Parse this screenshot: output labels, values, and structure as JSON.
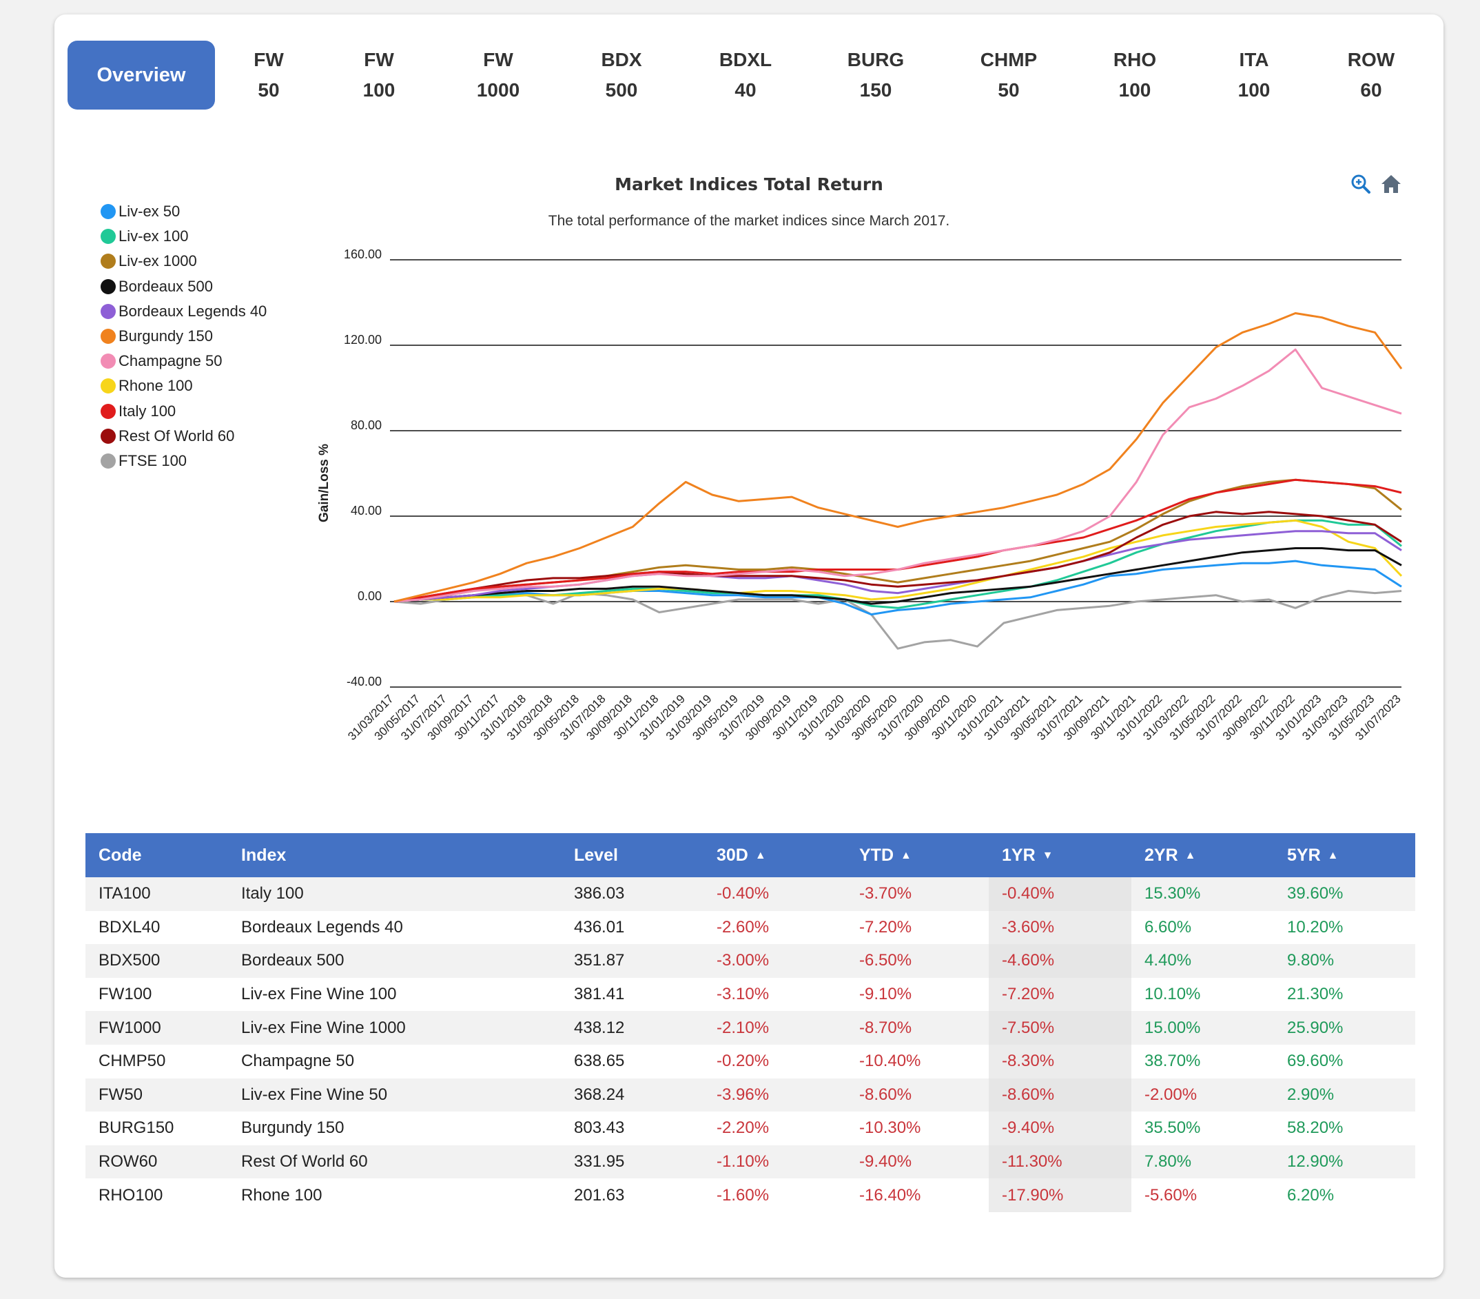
{
  "tabs": [
    {
      "line1": "Overview",
      "line2": ""
    },
    {
      "line1": "FW",
      "line2": "50"
    },
    {
      "line1": "FW",
      "line2": "100"
    },
    {
      "line1": "FW",
      "line2": "1000"
    },
    {
      "line1": "BDX",
      "line2": "500"
    },
    {
      "line1": "BDXL",
      "line2": "40"
    },
    {
      "line1": "BURG",
      "line2": "150"
    },
    {
      "line1": "CHMP",
      "line2": "50"
    },
    {
      "line1": "RHO",
      "line2": "100"
    },
    {
      "line1": "ITA",
      "line2": "100"
    },
    {
      "line1": "ROW",
      "line2": "60"
    }
  ],
  "toolbar": {
    "zoom_icon": "zoom-in-icon",
    "home_icon": "home-icon"
  },
  "chart_data": {
    "type": "line",
    "title": "Market Indices Total Return",
    "subtitle": "The total performance of the market indices since March 2017.",
    "ylabel": "Gain/Loss %",
    "xlabel": "",
    "ylim": [
      -40,
      160
    ],
    "yticks": [
      "160.00",
      "120.00",
      "80.00",
      "40.00",
      "0.00",
      "-40.00"
    ],
    "grid": true,
    "legend_position": "left",
    "x": [
      "31/03/2017",
      "30/05/2017",
      "31/07/2017",
      "30/09/2017",
      "30/11/2017",
      "31/01/2018",
      "31/03/2018",
      "30/05/2018",
      "31/07/2018",
      "30/09/2018",
      "30/11/2018",
      "31/01/2019",
      "31/03/2019",
      "30/05/2019",
      "31/07/2019",
      "30/09/2019",
      "30/11/2019",
      "31/01/2020",
      "31/03/2020",
      "30/05/2020",
      "31/07/2020",
      "30/09/2020",
      "30/11/2020",
      "31/01/2021",
      "31/03/2021",
      "30/05/2021",
      "31/07/2021",
      "30/09/2021",
      "30/11/2021",
      "31/01/2022",
      "31/03/2022",
      "31/05/2022",
      "31/07/2022",
      "30/09/2022",
      "30/11/2022",
      "31/01/2023",
      "31/03/2023",
      "31/05/2023",
      "31/07/2023"
    ],
    "series": [
      {
        "name": "Liv-ex 50",
        "color": "#2196f3",
        "values": [
          0,
          1,
          2,
          3,
          3,
          4,
          3,
          3,
          4,
          5,
          5,
          4,
          3,
          3,
          2,
          2,
          2,
          -1,
          -6,
          -4,
          -3,
          -1,
          0,
          1,
          2,
          5,
          8,
          12,
          13,
          15,
          16,
          17,
          18,
          18,
          19,
          17,
          16,
          15,
          7
        ]
      },
      {
        "name": "Liv-ex 100",
        "color": "#20c997",
        "values": [
          0,
          1,
          1,
          2,
          3,
          3,
          3,
          4,
          5,
          6,
          6,
          5,
          4,
          4,
          3,
          3,
          3,
          1,
          -2,
          -3,
          -1,
          1,
          3,
          5,
          7,
          10,
          14,
          18,
          23,
          27,
          30,
          33,
          35,
          37,
          38,
          38,
          36,
          36,
          26
        ]
      },
      {
        "name": "Liv-ex 1000",
        "color": "#b07d1c",
        "values": [
          0,
          2,
          3,
          5,
          7,
          8,
          9,
          10,
          12,
          14,
          16,
          17,
          16,
          15,
          15,
          16,
          15,
          13,
          11,
          9,
          11,
          13,
          15,
          17,
          19,
          22,
          25,
          28,
          34,
          41,
          47,
          51,
          54,
          56,
          57,
          56,
          55,
          53,
          43
        ]
      },
      {
        "name": "Bordeaux 500",
        "color": "#111111",
        "values": [
          0,
          1,
          2,
          3,
          4,
          5,
          5,
          6,
          6,
          7,
          7,
          6,
          5,
          4,
          3,
          3,
          2,
          1,
          -1,
          0,
          2,
          4,
          5,
          6,
          7,
          9,
          11,
          13,
          15,
          17,
          19,
          21,
          23,
          24,
          25,
          25,
          24,
          24,
          17
        ]
      },
      {
        "name": "Bordeaux Legends 40",
        "color": "#8e5fd6",
        "values": [
          0,
          1,
          2,
          3,
          5,
          6,
          7,
          8,
          10,
          12,
          13,
          13,
          12,
          11,
          11,
          12,
          10,
          8,
          5,
          4,
          6,
          8,
          10,
          12,
          14,
          16,
          19,
          22,
          25,
          27,
          29,
          30,
          31,
          32,
          33,
          33,
          32,
          32,
          24
        ]
      },
      {
        "name": "Burgundy 150",
        "color": "#f0821e",
        "values": [
          0,
          3,
          6,
          9,
          13,
          18,
          21,
          25,
          30,
          35,
          46,
          56,
          50,
          47,
          48,
          49,
          44,
          41,
          38,
          35,
          38,
          40,
          42,
          44,
          47,
          50,
          55,
          62,
          76,
          93,
          106,
          119,
          126,
          130,
          135,
          133,
          129,
          126,
          109
        ]
      },
      {
        "name": "Champagne 50",
        "color": "#f28cb4",
        "values": [
          0,
          1,
          3,
          5,
          6,
          7,
          7,
          8,
          10,
          12,
          13,
          12,
          12,
          13,
          14,
          15,
          14,
          12,
          13,
          15,
          18,
          20,
          22,
          24,
          26,
          29,
          33,
          40,
          56,
          78,
          91,
          95,
          101,
          108,
          118,
          100,
          96,
          92,
          88
        ]
      },
      {
        "name": "Rhone 100",
        "color": "#f7d51a",
        "values": [
          0,
          1,
          1,
          2,
          2,
          3,
          3,
          3,
          4,
          5,
          6,
          6,
          5,
          4,
          5,
          5,
          4,
          3,
          1,
          2,
          4,
          6,
          9,
          12,
          15,
          18,
          21,
          25,
          28,
          31,
          33,
          35,
          36,
          37,
          38,
          35,
          28,
          25,
          12
        ]
      },
      {
        "name": "Italy 100",
        "color": "#e01c1c",
        "values": [
          0,
          2,
          4,
          6,
          7,
          8,
          9,
          10,
          11,
          13,
          14,
          14,
          13,
          14,
          14,
          14,
          15,
          15,
          15,
          15,
          17,
          19,
          21,
          24,
          26,
          28,
          30,
          34,
          38,
          43,
          48,
          51,
          53,
          55,
          57,
          56,
          55,
          54,
          51
        ]
      },
      {
        "name": "Rest Of World 60",
        "color": "#9b0d0d",
        "values": [
          0,
          2,
          4,
          6,
          8,
          10,
          11,
          11,
          12,
          13,
          14,
          13,
          12,
          12,
          12,
          12,
          11,
          10,
          8,
          7,
          8,
          9,
          10,
          12,
          14,
          16,
          19,
          23,
          30,
          36,
          40,
          42,
          41,
          42,
          41,
          40,
          38,
          36,
          28
        ]
      },
      {
        "name": "FTSE 100",
        "color": "#a3a3a3",
        "values": [
          0,
          -1,
          1,
          3,
          4,
          3,
          -1,
          4,
          3,
          1,
          -5,
          -3,
          -1,
          1,
          1,
          1,
          -1,
          1,
          -6,
          -22,
          -19,
          -18,
          -21,
          -10,
          -7,
          -4,
          -3,
          -2,
          0,
          1,
          2,
          3,
          0,
          1,
          -3,
          2,
          5,
          4,
          5
        ]
      }
    ]
  },
  "table": {
    "headers": [
      "Code",
      "Index",
      "Level",
      "30D",
      "YTD",
      "1YR",
      "2YR",
      "5YR"
    ],
    "sort_arrows": {
      "30D": "▲",
      "YTD": "▲",
      "1YR": "▼",
      "2YR": "▲",
      "5YR": "▲"
    },
    "rows": [
      {
        "code": "ITA100",
        "index": "Italy 100",
        "level": "386.03",
        "d30": "-0.40%",
        "ytd": "-3.70%",
        "yr1": "-0.40%",
        "yr2": "15.30%",
        "yr5": "39.60%"
      },
      {
        "code": "BDXL40",
        "index": "Bordeaux Legends 40",
        "level": "436.01",
        "d30": "-2.60%",
        "ytd": "-7.20%",
        "yr1": "-3.60%",
        "yr2": "6.60%",
        "yr5": "10.20%"
      },
      {
        "code": "BDX500",
        "index": "Bordeaux 500",
        "level": "351.87",
        "d30": "-3.00%",
        "ytd": "-6.50%",
        "yr1": "-4.60%",
        "yr2": "4.40%",
        "yr5": "9.80%"
      },
      {
        "code": "FW100",
        "index": "Liv-ex Fine Wine 100",
        "level": "381.41",
        "d30": "-3.10%",
        "ytd": "-9.10%",
        "yr1": "-7.20%",
        "yr2": "10.10%",
        "yr5": "21.30%"
      },
      {
        "code": "FW1000",
        "index": "Liv-ex Fine Wine 1000",
        "level": "438.12",
        "d30": "-2.10%",
        "ytd": "-8.70%",
        "yr1": "-7.50%",
        "yr2": "15.00%",
        "yr5": "25.90%"
      },
      {
        "code": "CHMP50",
        "index": "Champagne 50",
        "level": "638.65",
        "d30": "-0.20%",
        "ytd": "-10.40%",
        "yr1": "-8.30%",
        "yr2": "38.70%",
        "yr5": "69.60%"
      },
      {
        "code": "FW50",
        "index": "Liv-ex Fine Wine 50",
        "level": "368.24",
        "d30": "-3.96%",
        "ytd": "-8.60%",
        "yr1": "-8.60%",
        "yr2": "-2.00%",
        "yr5": "2.90%"
      },
      {
        "code": "BURG150",
        "index": "Burgundy 150",
        "level": "803.43",
        "d30": "-2.20%",
        "ytd": "-10.30%",
        "yr1": "-9.40%",
        "yr2": "35.50%",
        "yr5": "58.20%"
      },
      {
        "code": "ROW60",
        "index": "Rest Of World 60",
        "level": "331.95",
        "d30": "-1.10%",
        "ytd": "-9.40%",
        "yr1": "-11.30%",
        "yr2": "7.80%",
        "yr5": "12.90%"
      },
      {
        "code": "RHO100",
        "index": "Rhone 100",
        "level": "201.63",
        "d30": "-1.60%",
        "ytd": "-16.40%",
        "yr1": "-17.90%",
        "yr2": "-5.60%",
        "yr5": "6.20%"
      }
    ]
  }
}
